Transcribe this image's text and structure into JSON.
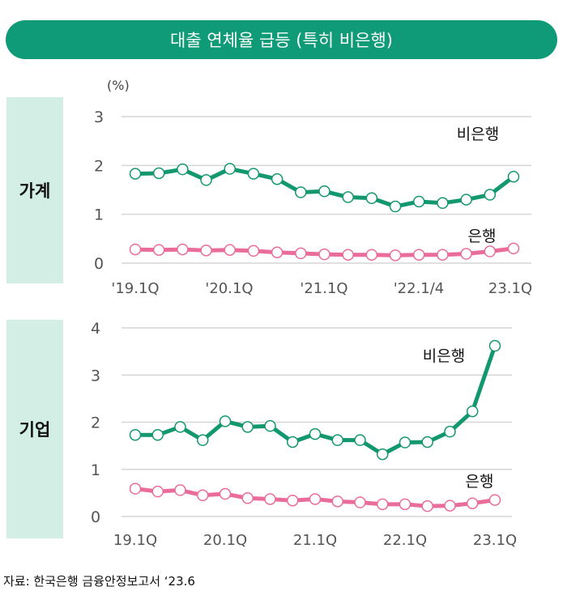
{
  "title": "대출 연체율 급등 (특히 비은행)",
  "unit": "(%)",
  "source": "자료: 한국은행 금융안정보고서 ‘23.6",
  "colors": {
    "nonbank": "#13976f",
    "bank": "#e96c9a",
    "accent": "#0f9b77"
  },
  "chart_data": [
    {
      "type": "line",
      "panel_label": "가계",
      "ylim": [
        0,
        3
      ],
      "yticks": [
        "0",
        "1",
        "2",
        "3"
      ],
      "xtick_labels": [
        "'19.1Q",
        "'20.1Q",
        "'21.1Q",
        "'22.1/4",
        "23.1Q"
      ],
      "x": [
        "19.1Q",
        "19.2Q",
        "19.3Q",
        "19.4Q",
        "20.1Q",
        "20.2Q",
        "20.3Q",
        "20.4Q",
        "21.1Q",
        "21.2Q",
        "21.3Q",
        "21.4Q",
        "22.1Q",
        "22.2Q",
        "22.3Q",
        "22.4Q",
        "23.1Q"
      ],
      "series": [
        {
          "name": "비은행",
          "values": [
            1.83,
            1.84,
            1.92,
            1.7,
            1.93,
            1.83,
            1.72,
            1.45,
            1.47,
            1.35,
            1.33,
            1.16,
            1.26,
            1.23,
            1.3,
            1.4,
            1.77
          ]
        },
        {
          "name": "은행",
          "values": [
            0.28,
            0.27,
            0.28,
            0.26,
            0.27,
            0.25,
            0.22,
            0.2,
            0.18,
            0.17,
            0.17,
            0.16,
            0.17,
            0.17,
            0.19,
            0.24,
            0.3
          ]
        }
      ]
    },
    {
      "type": "line",
      "panel_label": "기업",
      "ylim": [
        0,
        4
      ],
      "yticks": [
        "0",
        "1",
        "2",
        "3",
        "4"
      ],
      "xtick_labels": [
        "19.1Q",
        "20.1Q",
        "21.1Q",
        "22.1Q",
        "23.1Q"
      ],
      "x": [
        "19.1Q",
        "19.2Q",
        "19.3Q",
        "19.4Q",
        "20.1Q",
        "20.2Q",
        "20.3Q",
        "20.4Q",
        "21.1Q",
        "21.2Q",
        "21.3Q",
        "21.4Q",
        "22.1Q",
        "22.2Q",
        "22.3Q",
        "22.4Q",
        "23.1Q"
      ],
      "series": [
        {
          "name": "비은행",
          "values": [
            1.73,
            1.73,
            1.9,
            1.62,
            2.02,
            1.9,
            1.92,
            1.58,
            1.75,
            1.62,
            1.62,
            1.32,
            1.57,
            1.58,
            1.8,
            2.23,
            3.62
          ]
        },
        {
          "name": "은행",
          "values": [
            0.59,
            0.53,
            0.56,
            0.45,
            0.48,
            0.39,
            0.37,
            0.34,
            0.37,
            0.32,
            0.3,
            0.26,
            0.26,
            0.22,
            0.23,
            0.28,
            0.35
          ]
        }
      ]
    }
  ]
}
